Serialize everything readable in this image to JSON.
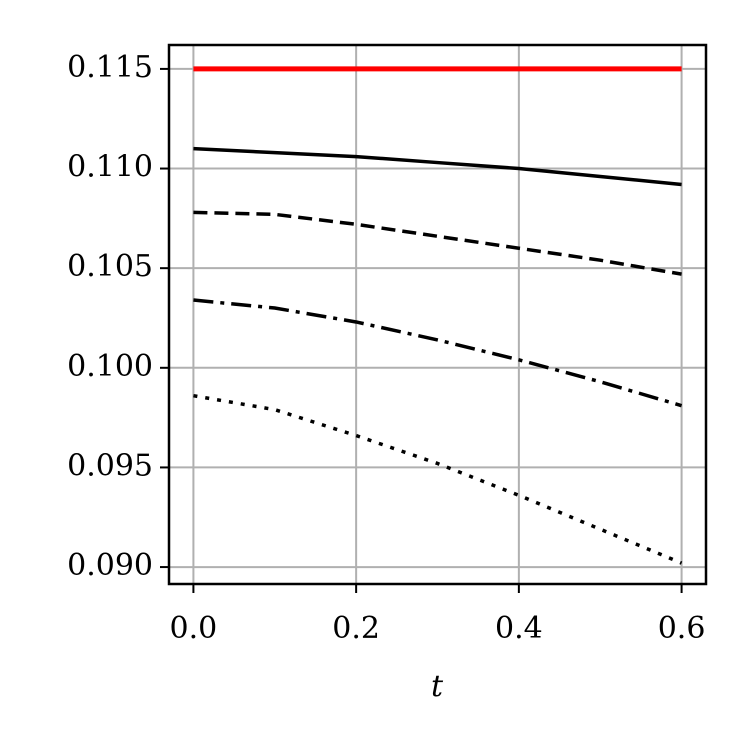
{
  "chart_data": {
    "type": "line",
    "x_label": "t",
    "x": [
      0,
      0.1,
      0.2,
      0.3,
      0.4,
      0.5,
      0.6
    ],
    "series": [
      {
        "color": "#ff0000",
        "dash": "solid",
        "width": 5,
        "values": [
          0.115,
          0.115,
          0.115,
          0.115,
          0.115,
          0.115,
          0.115
        ]
      },
      {
        "color": "#000000",
        "dash": "solid",
        "width": 3.5,
        "values": [
          0.111,
          0.1108,
          0.1106,
          0.1103,
          0.11,
          0.1096,
          0.1092
        ]
      },
      {
        "color": "#000000",
        "dash": "dashed",
        "width": 3.5,
        "values": [
          0.1078,
          0.1077,
          0.1072,
          0.1066,
          0.106,
          0.1054,
          0.1047
        ]
      },
      {
        "color": "#000000",
        "dash": "dashdot",
        "width": 3.5,
        "values": [
          0.1034,
          0.103,
          0.1023,
          0.1014,
          0.1004,
          0.0993,
          0.0981
        ]
      },
      {
        "color": "#000000",
        "dash": "dotted",
        "width": 3.5,
        "values": [
          0.0986,
          0.0979,
          0.0966,
          0.0952,
          0.0936,
          0.0919,
          0.0902
        ]
      }
    ],
    "xlim": [
      -0.03,
      0.63
    ],
    "xticks": [
      {
        "value": 0,
        "label": "0.0"
      },
      {
        "value": 0.2,
        "label": "0.2"
      },
      {
        "value": 0.4,
        "label": "0.4"
      },
      {
        "value": 0.6,
        "label": "0.6"
      }
    ],
    "ylim": [
      0.08915,
      0.1162
    ],
    "yticks": [
      {
        "value": 0.09,
        "label": "0.090"
      },
      {
        "value": 0.095,
        "label": "0.095"
      },
      {
        "value": 0.1,
        "label": "0.100"
      },
      {
        "value": 0.105,
        "label": "0.105"
      },
      {
        "value": 0.11,
        "label": "0.110"
      },
      {
        "value": 0.115,
        "label": "0.115"
      }
    ],
    "grid": true
  }
}
